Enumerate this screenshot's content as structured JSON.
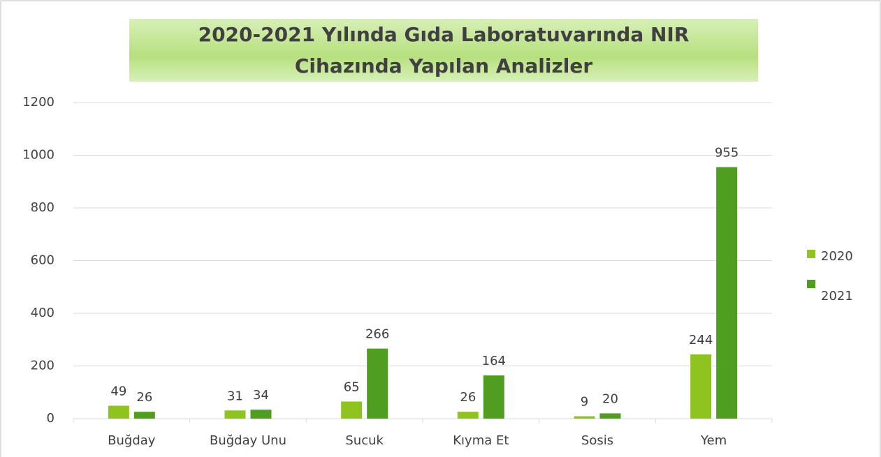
{
  "chart_data": {
    "type": "bar",
    "title": "2020-2021 Yılında Gıda Laboratuvarında NIR Cihazında Yapılan Analizler",
    "categories": [
      "Buğday",
      "Buğday Unu",
      "Sucuk",
      "Kıyma Et",
      "Sosis",
      "Yem"
    ],
    "series": [
      {
        "name": "2020",
        "color": "#8fc31f",
        "values": [
          49,
          31,
          65,
          26,
          9,
          244
        ]
      },
      {
        "name": "2021",
        "color": "#4f9e1f",
        "values": [
          26,
          34,
          266,
          164,
          20,
          955
        ]
      }
    ],
    "ylim": [
      0,
      1200
    ],
    "yticks": [
      0,
      200,
      400,
      600,
      800,
      1000,
      1200
    ],
    "grid": true,
    "legend": "right"
  }
}
